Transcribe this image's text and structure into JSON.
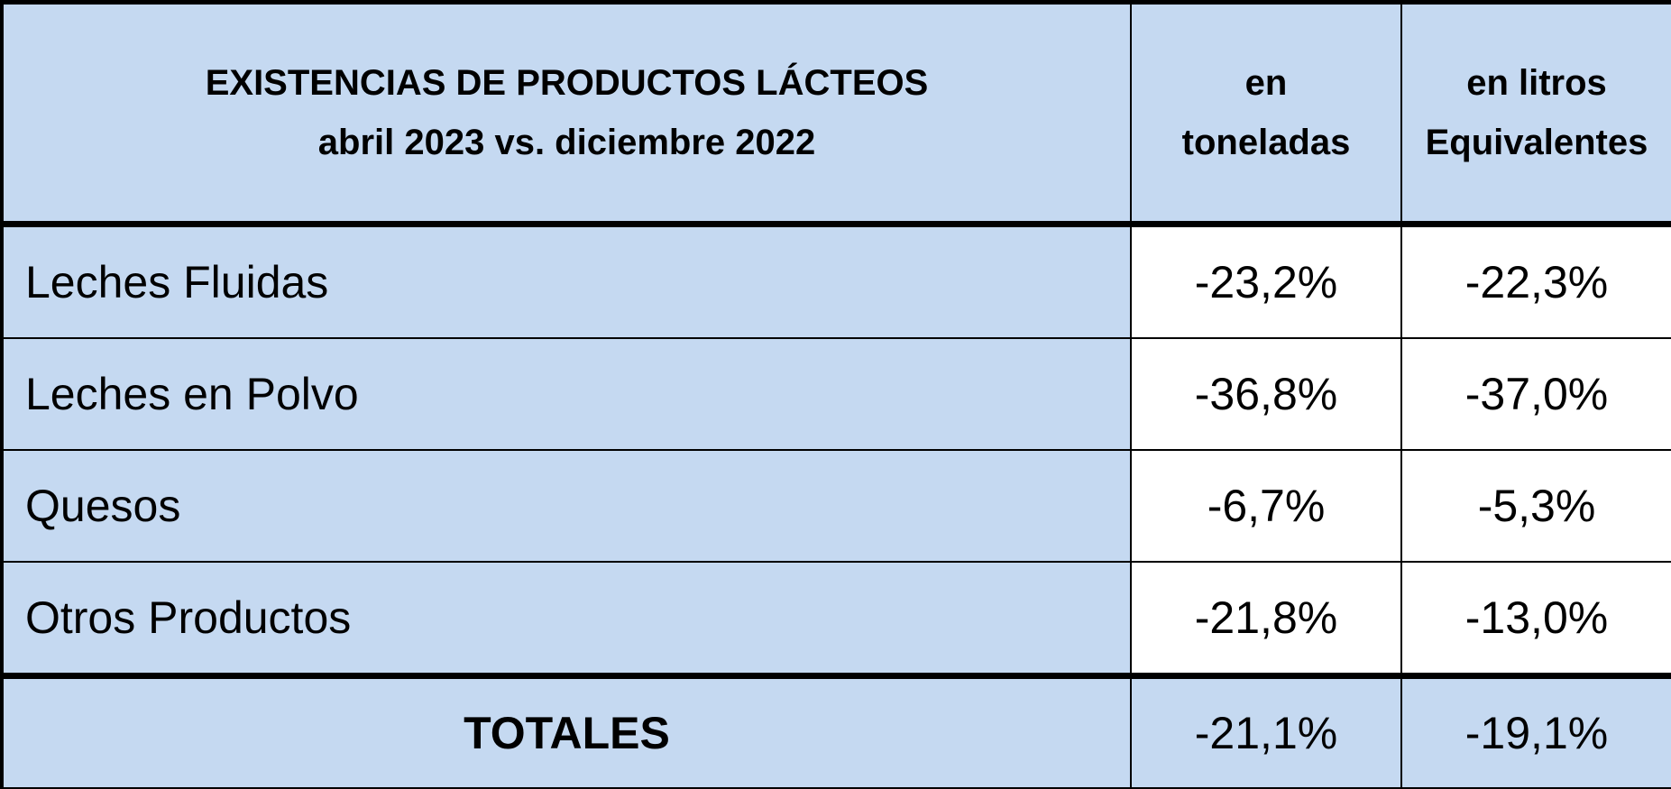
{
  "header": {
    "title": [
      "EXISTENCIAS DE PRODUCTOS LÁCTEOS",
      "abril 2023 vs. diciembre 2022"
    ],
    "columns": [
      [
        "en",
        "toneladas"
      ],
      [
        "en litros",
        "Equivalentes"
      ]
    ]
  },
  "table": {
    "rows": [
      {
        "label": "Leches Fluidas",
        "values": [
          "-23,2%",
          "-22,3%"
        ]
      },
      {
        "label": "Leches en Polvo",
        "values": [
          "-36,8%",
          "-37,0%"
        ]
      },
      {
        "label": "Quesos",
        "values": [
          "-6,7%",
          "-5,3%"
        ]
      },
      {
        "label": "Otros Productos",
        "values": [
          "-21,8%",
          "-13,0%"
        ]
      }
    ]
  },
  "totals": {
    "label": "TOTALES",
    "values": [
      "-21,1%",
      "-19,1%"
    ]
  }
}
